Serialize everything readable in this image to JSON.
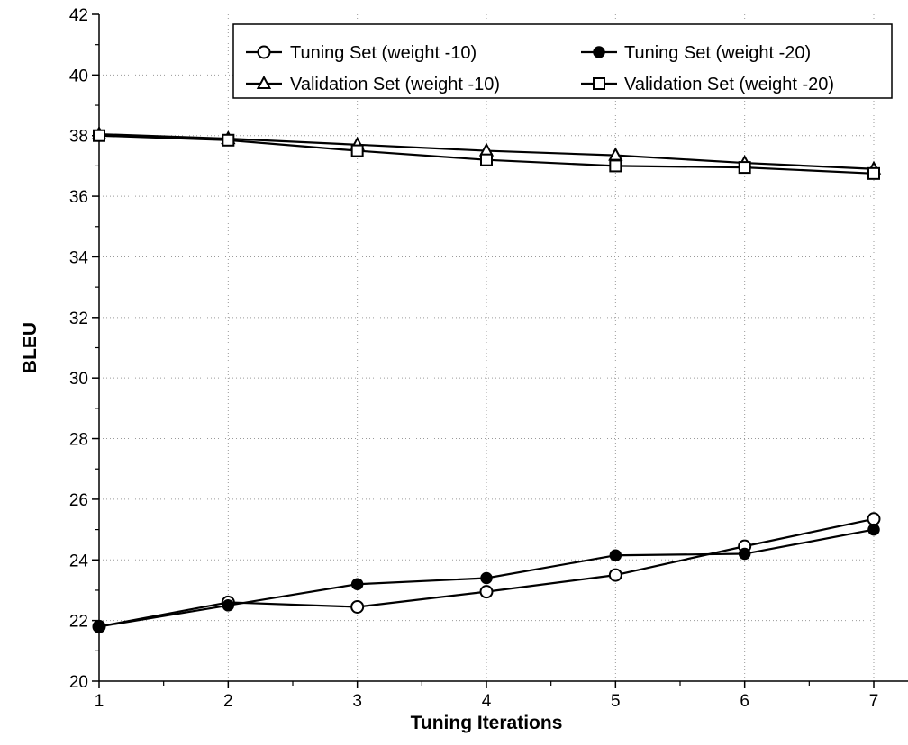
{
  "chart_data": {
    "type": "line",
    "title": "",
    "xlabel": "Tuning Iterations",
    "ylabel": "BLEU",
    "x": [
      1,
      2,
      3,
      4,
      5,
      6,
      7
    ],
    "xlim": [
      1,
      7
    ],
    "ylim": [
      20,
      42
    ],
    "x_ticks": [
      1,
      2,
      3,
      4,
      5,
      6,
      7
    ],
    "y_ticks": [
      20,
      22,
      24,
      26,
      28,
      30,
      32,
      34,
      36,
      38,
      40,
      42
    ],
    "grid": true,
    "legend_position": "top-right",
    "series": [
      {
        "name": "Tuning Set (weight -10)",
        "marker": "circle-open",
        "values": [
          21.8,
          22.6,
          22.45,
          22.95,
          23.5,
          24.45,
          25.35
        ]
      },
      {
        "name": "Tuning Set (weight -20)",
        "marker": "circle-filled",
        "values": [
          21.8,
          22.5,
          23.2,
          23.4,
          24.15,
          24.2,
          25.0
        ]
      },
      {
        "name": "Validation Set (weight -10)",
        "marker": "triangle-open",
        "values": [
          38.05,
          37.9,
          37.7,
          37.5,
          37.35,
          37.1,
          36.9
        ]
      },
      {
        "name": "Validation Set (weight -20)",
        "marker": "square-open",
        "values": [
          38.0,
          37.85,
          37.5,
          37.2,
          37.0,
          36.95,
          36.75
        ]
      }
    ]
  }
}
